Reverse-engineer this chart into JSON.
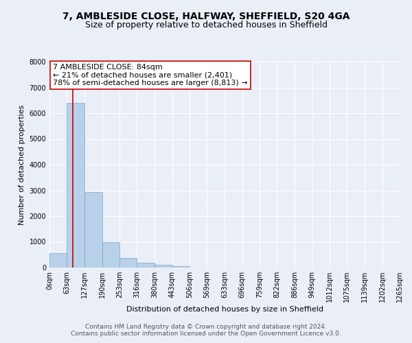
{
  "title": "7, AMBLESIDE CLOSE, HALFWAY, SHEFFIELD, S20 4GA",
  "subtitle": "Size of property relative to detached houses in Sheffield",
  "xlabel": "Distribution of detached houses by size in Sheffield",
  "ylabel": "Number of detached properties",
  "bin_edges": [
    0,
    63,
    127,
    190,
    253,
    316,
    380,
    443,
    506,
    569,
    633,
    696,
    759,
    822,
    886,
    949,
    1012,
    1075,
    1139,
    1202,
    1265
  ],
  "bin_labels": [
    "0sqm",
    "63sqm",
    "127sqm",
    "190sqm",
    "253sqm",
    "316sqm",
    "380sqm",
    "443sqm",
    "506sqm",
    "569sqm",
    "633sqm",
    "696sqm",
    "759sqm",
    "822sqm",
    "886sqm",
    "949sqm",
    "1012sqm",
    "1075sqm",
    "1139sqm",
    "1202sqm",
    "1265sqm"
  ],
  "counts": [
    550,
    6400,
    2930,
    980,
    380,
    180,
    95,
    60,
    0,
    0,
    0,
    0,
    0,
    0,
    0,
    0,
    0,
    0,
    0,
    0
  ],
  "bar_color": "#b8d0e8",
  "bar_edge_color": "#7aaac8",
  "vline_x": 84,
  "vline_color": "#cc0000",
  "annotation_line1": "7 AMBLESIDE CLOSE: 84sqm",
  "annotation_line2": "← 21% of detached houses are smaller (2,401)",
  "annotation_line3": "78% of semi-detached houses are larger (8,813) →",
  "annotation_box_color": "#ffffff",
  "annotation_box_edge": "#cc0000",
  "ylim": [
    0,
    8000
  ],
  "yticks": [
    0,
    1000,
    2000,
    3000,
    4000,
    5000,
    6000,
    7000,
    8000
  ],
  "footer_line1": "Contains HM Land Registry data © Crown copyright and database right 2024.",
  "footer_line2": "Contains public sector information licensed under the Open Government Licence v3.0.",
  "bg_color": "#eaeff7",
  "plot_bg_color": "#eaeff7",
  "title_fontsize": 10,
  "subtitle_fontsize": 9,
  "axis_label_fontsize": 8,
  "tick_fontsize": 7,
  "annotation_fontsize": 8,
  "footer_fontsize": 6.5
}
